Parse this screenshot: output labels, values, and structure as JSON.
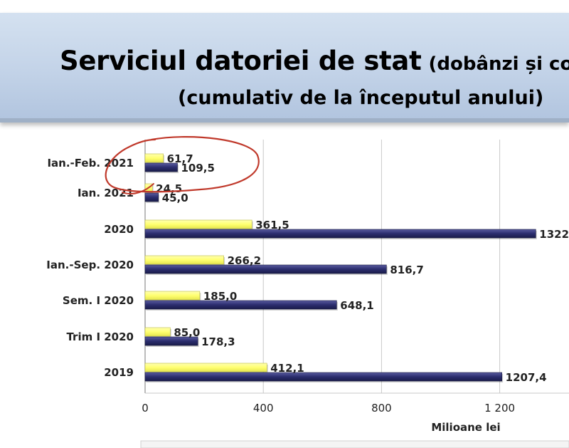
{
  "title": {
    "main": "Serviciul datoriei de stat",
    "paren": "(dobânzi și co",
    "line2": "(cumulativ de la începutul anului)"
  },
  "chart_data": {
    "type": "bar",
    "orientation": "horizontal",
    "categories": [
      "Ian.-Feb. 2021",
      "Ian. 2021",
      "2020",
      "Ian.-Sep. 2020",
      "Sem. I 2020",
      "Trim I 2020",
      "2019"
    ],
    "series": [
      {
        "values": [
          61.7,
          24.5,
          361.5,
          266.2,
          185.0,
          85.0,
          412.1
        ],
        "color": "#ffff80"
      },
      {
        "values": [
          109.5,
          45.0,
          1322,
          816.7,
          648.1,
          178.3,
          1207.4
        ],
        "color": "#2b2d6e"
      }
    ],
    "value_labels": [
      [
        "61,7",
        "24,5",
        "361,5",
        "266,2",
        "185,0",
        "85,0",
        "412,1"
      ],
      [
        "109,5",
        "45,0",
        "1322",
        "816,7",
        "648,1",
        "178,3",
        "1207,4"
      ]
    ],
    "xlabel": "Milioane lei",
    "xlim": [
      0,
      1400
    ],
    "xticks": [
      0,
      400,
      800,
      1200
    ],
    "xtick_labels": [
      "0",
      "400",
      "800",
      "1 200"
    ],
    "grid": true,
    "annotation": "hand-drawn red circle around Ian.-Feb. 2021 and Ian. 2021 bars"
  },
  "colors": {
    "annotation": "#c0392b",
    "grid": "#c8c8c8",
    "axis": "#909090"
  }
}
